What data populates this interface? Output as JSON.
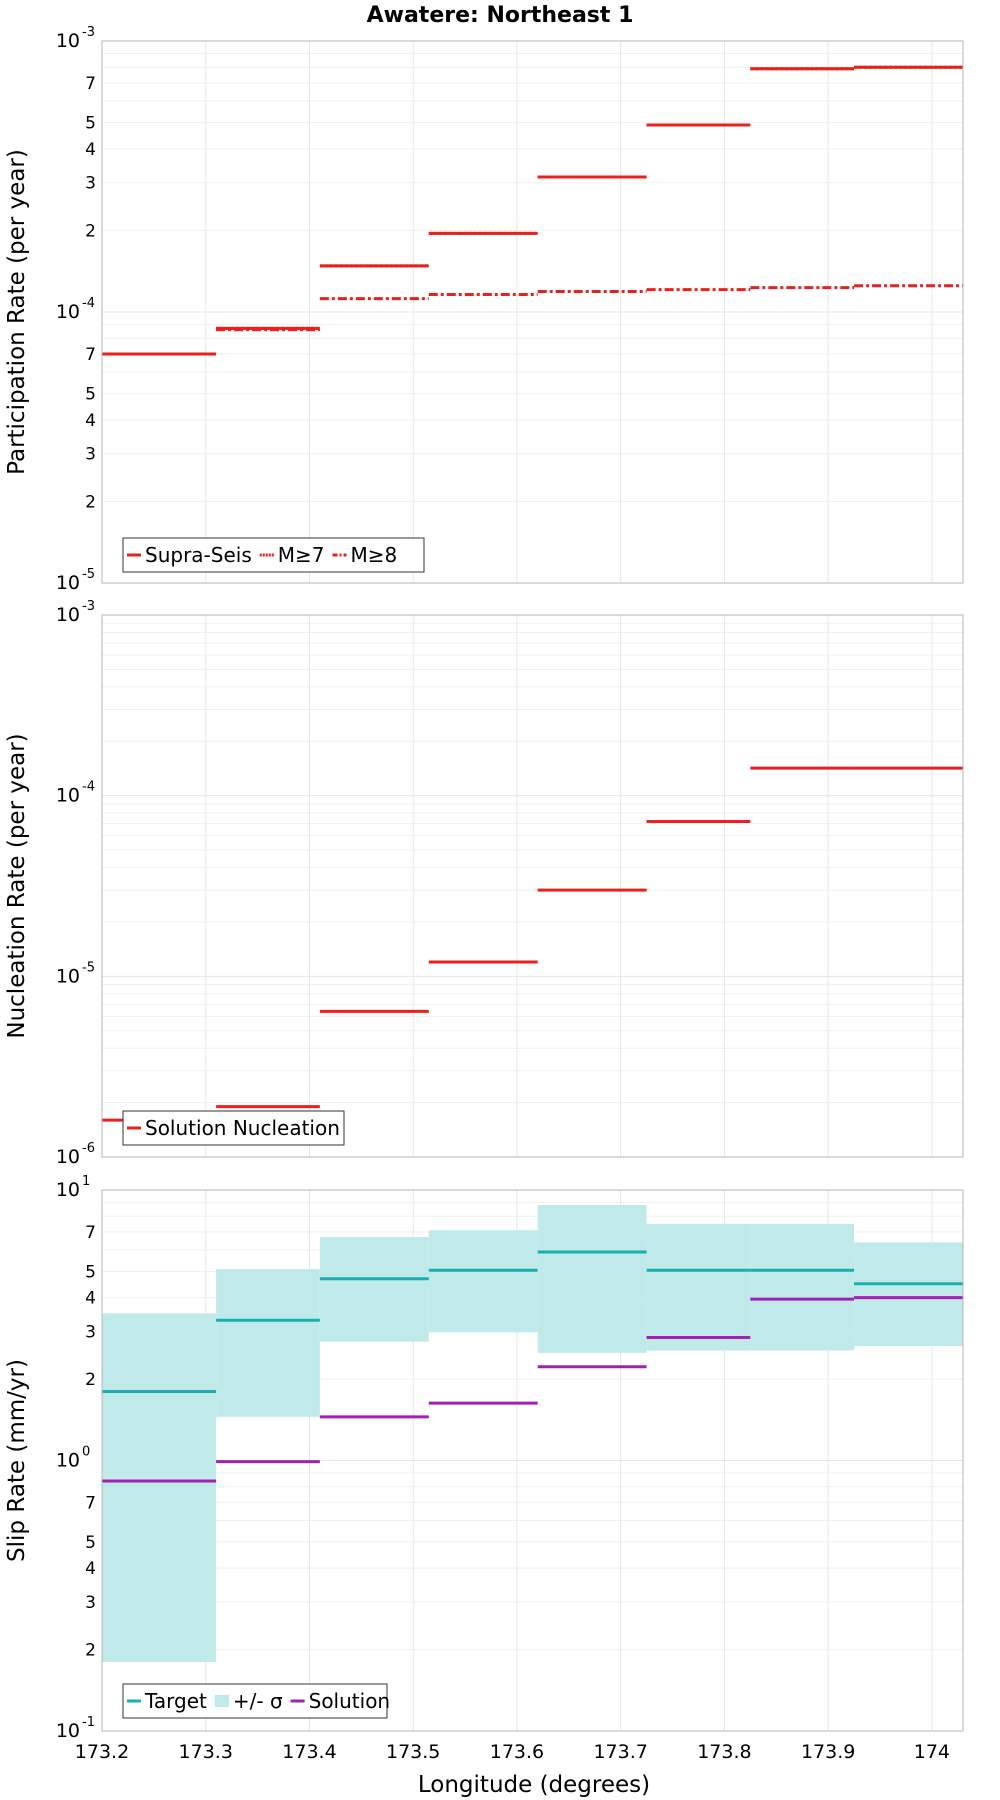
{
  "title": "Awatere: Northeast 1",
  "xlabel": "Longitude (degrees)",
  "x_tick_labels": [
    "173.2",
    "173.3",
    "173.4",
    "173.5",
    "173.6",
    "173.7",
    "173.8",
    "173.9",
    "174"
  ],
  "chart_data": [
    {
      "type": "line",
      "ylabel": "Participation Rate (per year)",
      "yscale": "log",
      "ylim": [
        1e-05,
        0.001
      ],
      "xlim": [
        173.2,
        174.03
      ],
      "grid": true,
      "legend_position": "bottom-left",
      "x_edges": [
        173.2,
        173.31,
        173.41,
        173.515,
        173.62,
        173.725,
        173.825,
        173.925,
        174.03
      ],
      "series": [
        {
          "name": "Supra-Seis",
          "style": "solid",
          "color": "#e8201e",
          "values": [
            7e-05,
            8.7e-05,
            0.000148,
            0.000195,
            0.000315,
            0.00049,
            0.00079,
            0.0008
          ]
        },
        {
          "name": "M≥7",
          "style": "dotted",
          "color": "#e8201e",
          "values": [
            7e-05,
            8.7e-05,
            0.000148,
            0.000195,
            0.000315,
            0.00049,
            0.00079,
            0.0008
          ]
        },
        {
          "name": "M≥8",
          "style": "dashdot",
          "color": "#e8201e",
          "values": [
            null,
            8.6e-05,
            0.000112,
            0.000116,
            0.000119,
            0.000121,
            0.000123,
            0.000125
          ]
        }
      ]
    },
    {
      "type": "line",
      "ylabel": "Nucleation Rate (per year)",
      "yscale": "log",
      "ylim": [
        1e-06,
        0.001
      ],
      "xlim": [
        173.2,
        174.03
      ],
      "grid": true,
      "legend_position": "bottom-left",
      "x_edges": [
        173.2,
        173.31,
        173.41,
        173.515,
        173.62,
        173.725,
        173.825,
        173.925,
        174.03
      ],
      "series": [
        {
          "name": "Solution Nucleation",
          "style": "solid",
          "color": "#e8201e",
          "values": [
            1.6e-06,
            1.9e-06,
            6.4e-06,
            1.2e-05,
            3e-05,
            7.2e-05,
            0.000142,
            0.000142
          ]
        }
      ]
    },
    {
      "type": "area",
      "ylabel": "Slip Rate (mm/yr)",
      "yscale": "log",
      "ylim": [
        0.1,
        10
      ],
      "xlim": [
        173.2,
        174.03
      ],
      "grid": true,
      "legend_position": "bottom-left",
      "x_edges": [
        173.2,
        173.31,
        173.41,
        173.515,
        173.62,
        173.725,
        173.825,
        173.925,
        174.03
      ],
      "band": {
        "name": "+/- σ",
        "color": "#bfeae9",
        "lower": [
          0.18,
          1.45,
          2.75,
          2.98,
          2.5,
          2.55,
          2.55,
          2.65
        ],
        "upper": [
          3.5,
          5.1,
          6.7,
          7.1,
          8.8,
          7.5,
          7.5,
          6.4
        ]
      },
      "series": [
        {
          "name": "Target",
          "style": "solid",
          "color": "#1aafb0",
          "values": [
            1.8,
            3.3,
            4.7,
            5.05,
            5.9,
            5.05,
            5.05,
            4.5
          ]
        },
        {
          "name": "Solution",
          "style": "solid",
          "color": "#a021b2",
          "values": [
            0.84,
            0.99,
            1.45,
            1.63,
            2.22,
            2.85,
            3.95,
            4.0
          ]
        }
      ]
    }
  ]
}
